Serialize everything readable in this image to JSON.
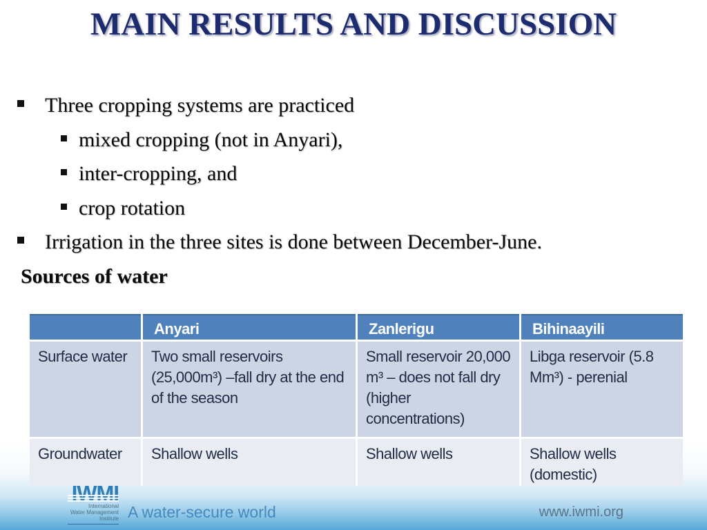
{
  "slide": {
    "title": "MAIN RESULTS AND DISCUSSION",
    "bullets": [
      "Three cropping systems are practiced",
      "mixed cropping (not in Anyari),",
      "inter-cropping, and",
      "crop rotation",
      "Irrigation in the three sites is done between December-June."
    ],
    "subheading": "Sources of water"
  },
  "table": {
    "headers": [
      "",
      "Anyari",
      "Zanlerigu",
      "Bihinaayili"
    ],
    "rows": [
      {
        "label": "Surface water",
        "anyari": "Two small reservoirs (25,000m³) –fall dry at the end of the season",
        "zanlerigu": "Small reservoir 20,000 m³ – does not fall dry (higher concentrations)",
        "bihinaayili": "Libga reservoir (5.8 Mm³) - perenial"
      },
      {
        "label": "Groundwater",
        "anyari": "Shallow wells",
        "zanlerigu": "Shallow wells",
        "bihinaayili": "Shallow wells (domestic)"
      }
    ]
  },
  "footer": {
    "logo_acronym": "IWMI",
    "logo_lines": [
      "International",
      "Water Management",
      "Institute"
    ],
    "tagline": "A water-secure world",
    "website": "www.iwmi.org"
  },
  "colors": {
    "title-text": "#1d2c6e",
    "header-bg": "#4f81bd",
    "row1-bg": "#cdd4e4",
    "row2-bg": "#e9ecf3",
    "table-text": "#1f2b45",
    "footer-blue": "#55a8d8",
    "tagline-color": "#4589bd",
    "logo-blue": "#2e7cb8",
    "website-color": "#5b7387"
  }
}
